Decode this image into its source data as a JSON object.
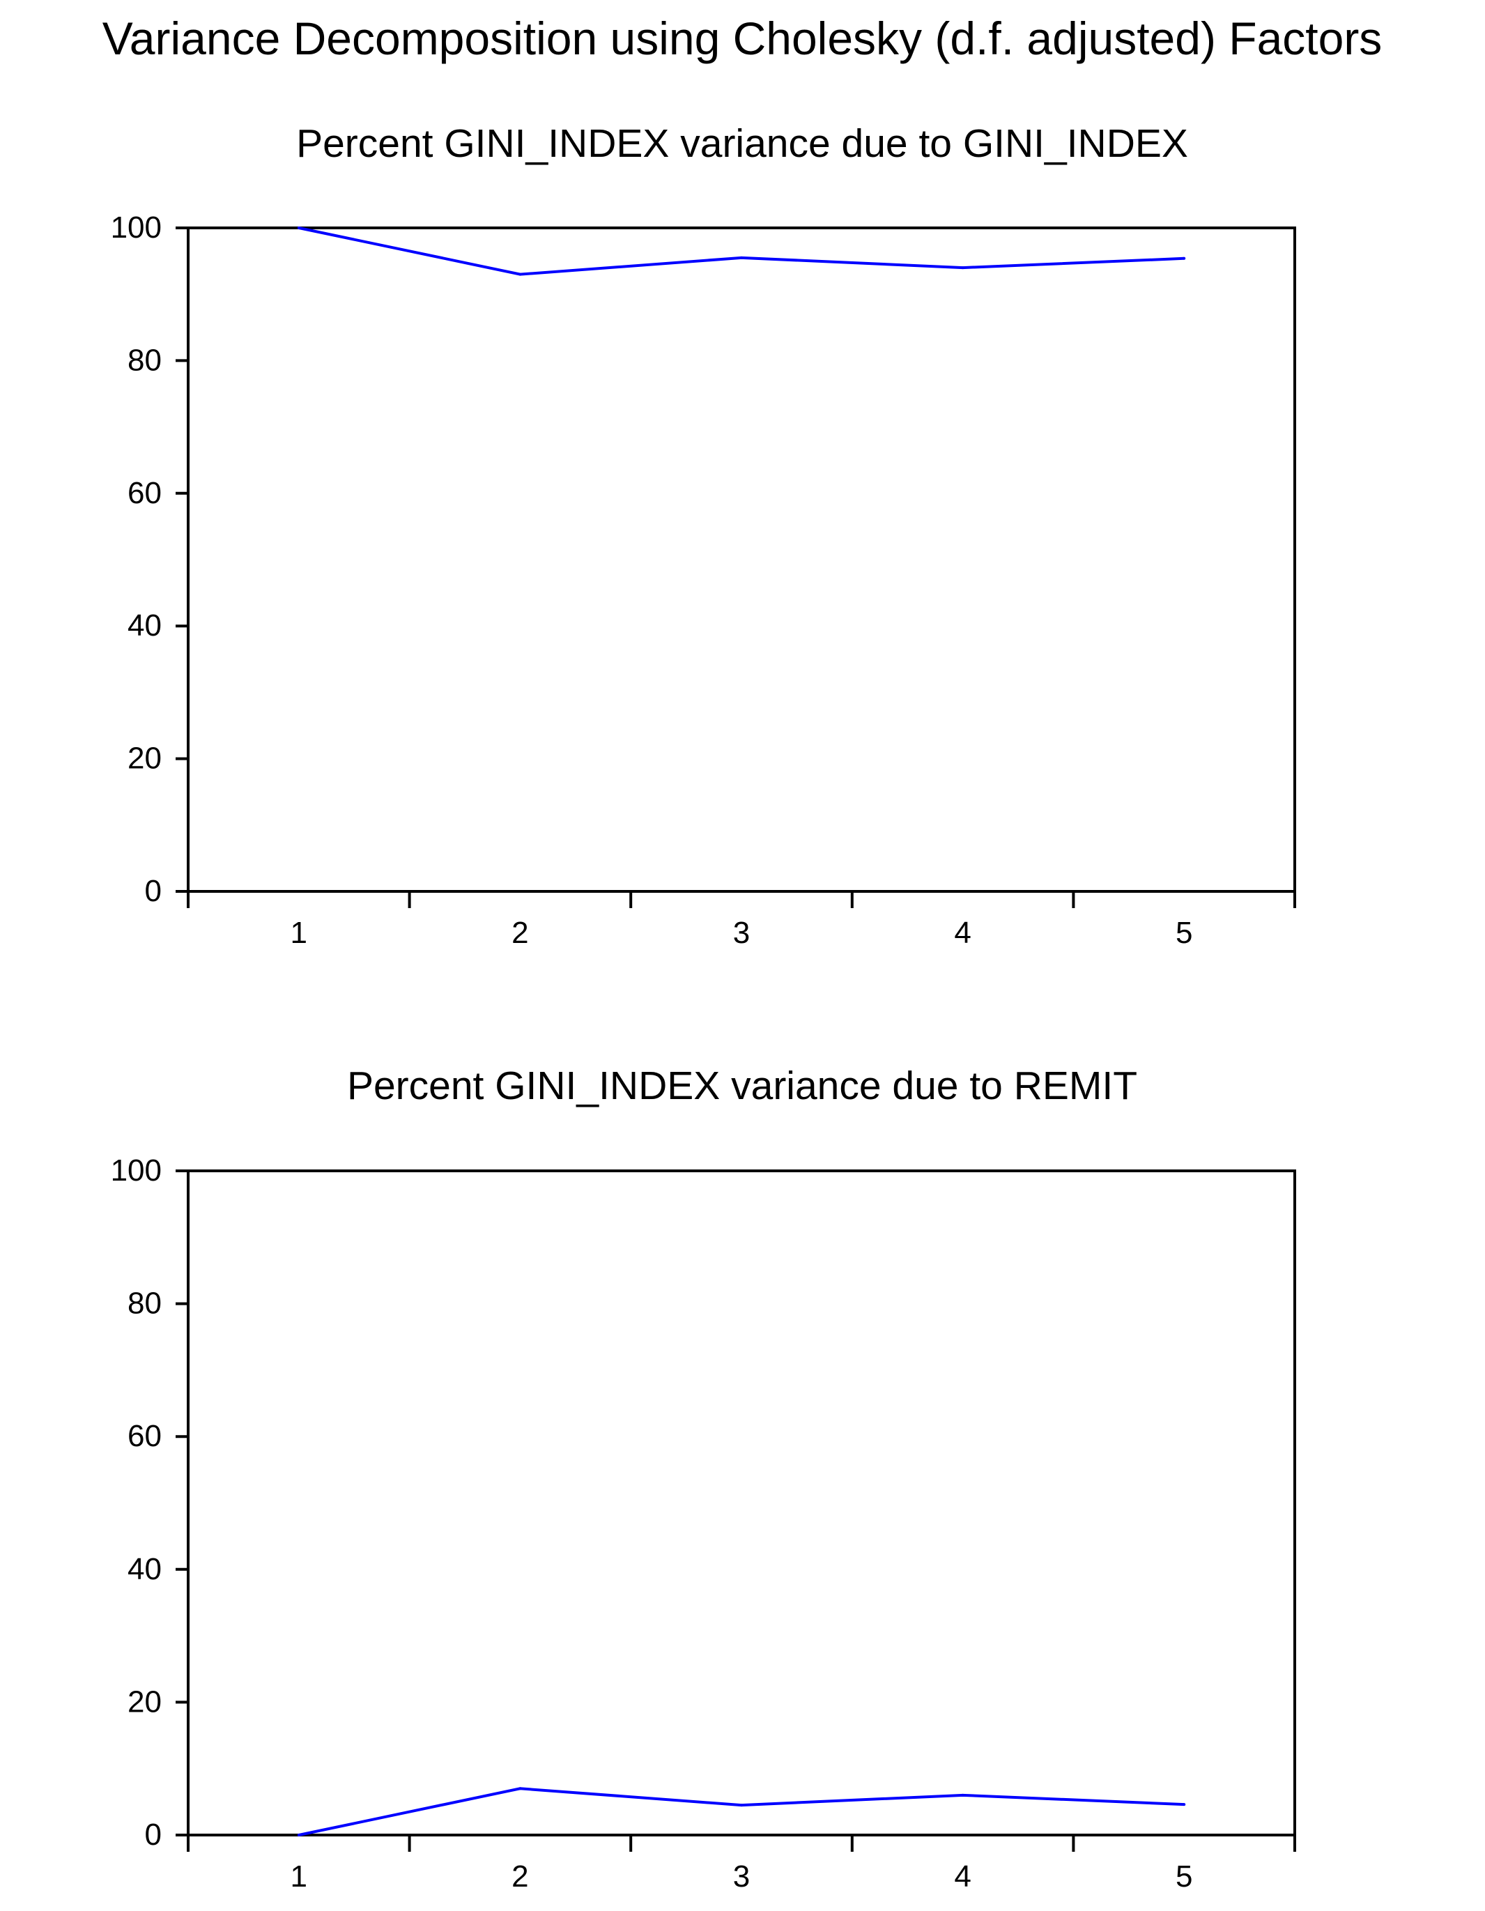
{
  "figure_title": "Variance Decomposition using Cholesky (d.f. adjusted) Factors",
  "colors": {
    "series": "#0000ff",
    "axis": "#000000",
    "background": "#ffffff"
  },
  "chart_data": [
    {
      "type": "line",
      "title": "Percent GINI_INDEX variance due to GINI_INDEX",
      "xlabel": "",
      "ylabel": "",
      "x": [
        1,
        2,
        3,
        4,
        5
      ],
      "x_tick_labels": [
        "1",
        "2",
        "3",
        "4",
        "5"
      ],
      "y_tick_labels": [
        "0",
        "20",
        "40",
        "60",
        "80",
        "100"
      ],
      "ylim": [
        0,
        100
      ],
      "grid": false,
      "series": [
        {
          "values": [
            100.0,
            93.0,
            95.5,
            94.0,
            95.4
          ]
        }
      ]
    },
    {
      "type": "line",
      "title": "Percent GINI_INDEX variance due to REMIT",
      "xlabel": "",
      "ylabel": "",
      "x": [
        1,
        2,
        3,
        4,
        5
      ],
      "x_tick_labels": [
        "1",
        "2",
        "3",
        "4",
        "5"
      ],
      "y_tick_labels": [
        "0",
        "20",
        "40",
        "60",
        "80",
        "100"
      ],
      "ylim": [
        0,
        100
      ],
      "grid": false,
      "series": [
        {
          "values": [
            0.0,
            7.0,
            4.5,
            6.0,
            4.6
          ]
        }
      ]
    }
  ]
}
